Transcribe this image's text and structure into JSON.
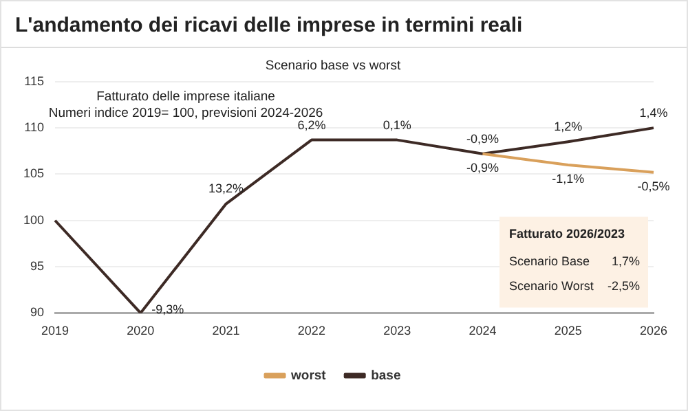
{
  "chart_data": {
    "type": "line",
    "title": "L'andamento dei ricavi delle imprese in termini reali",
    "subtitle": "Scenario base vs worst",
    "categories": [
      "2019",
      "2020",
      "2021",
      "2022",
      "2023",
      "2024",
      "2025",
      "2026"
    ],
    "series": [
      {
        "name": "worst",
        "color": "#d9a05b",
        "values": [
          null,
          null,
          null,
          null,
          null,
          107.2,
          106.0,
          105.2
        ]
      },
      {
        "name": "base",
        "color": "#3d2a25",
        "values": [
          100,
          90.0,
          101.8,
          108.7,
          108.7,
          107.2,
          108.5,
          110.0
        ]
      }
    ],
    "ylim": [
      90,
      115
    ],
    "yticks": [
      90,
      95,
      100,
      105,
      110,
      115
    ],
    "grid": "y",
    "legend": "bottom",
    "marker": "none",
    "line_style": "solid",
    "annotations": [
      "Fatturato delle imprese italiane",
      "Numeri indice 2019= 100, previsioni 2024-2026",
      "Fatturato 2026/2023",
      "Scenario Base",
      "1,7%",
      "Scenario Worst",
      "-2,5%",
      {
        "text": "-9,3%",
        "x": "2020",
        "y": 90.0
      },
      {
        "text": "13,2%",
        "x": "2021",
        "y": 101.8
      },
      {
        "text": "6,2%",
        "x": "2022",
        "y": 108.7
      },
      {
        "text": "0,1%",
        "x": "2023",
        "y": 108.7
      },
      {
        "text": "-0,9%",
        "x": "2024",
        "y": 107.2
      },
      {
        "text": "-0,9%",
        "x": "2024",
        "y": 107.2
      },
      {
        "text": "1,2%",
        "x": "2025",
        "y": 108.5
      },
      {
        "text": "-1,1%",
        "x": "2025",
        "y": 106.0
      },
      {
        "text": "1,4%",
        "x": "2026",
        "y": 110.0
      },
      {
        "text": "-0,5%",
        "x": "2026",
        "y": 105.2
      }
    ]
  }
}
